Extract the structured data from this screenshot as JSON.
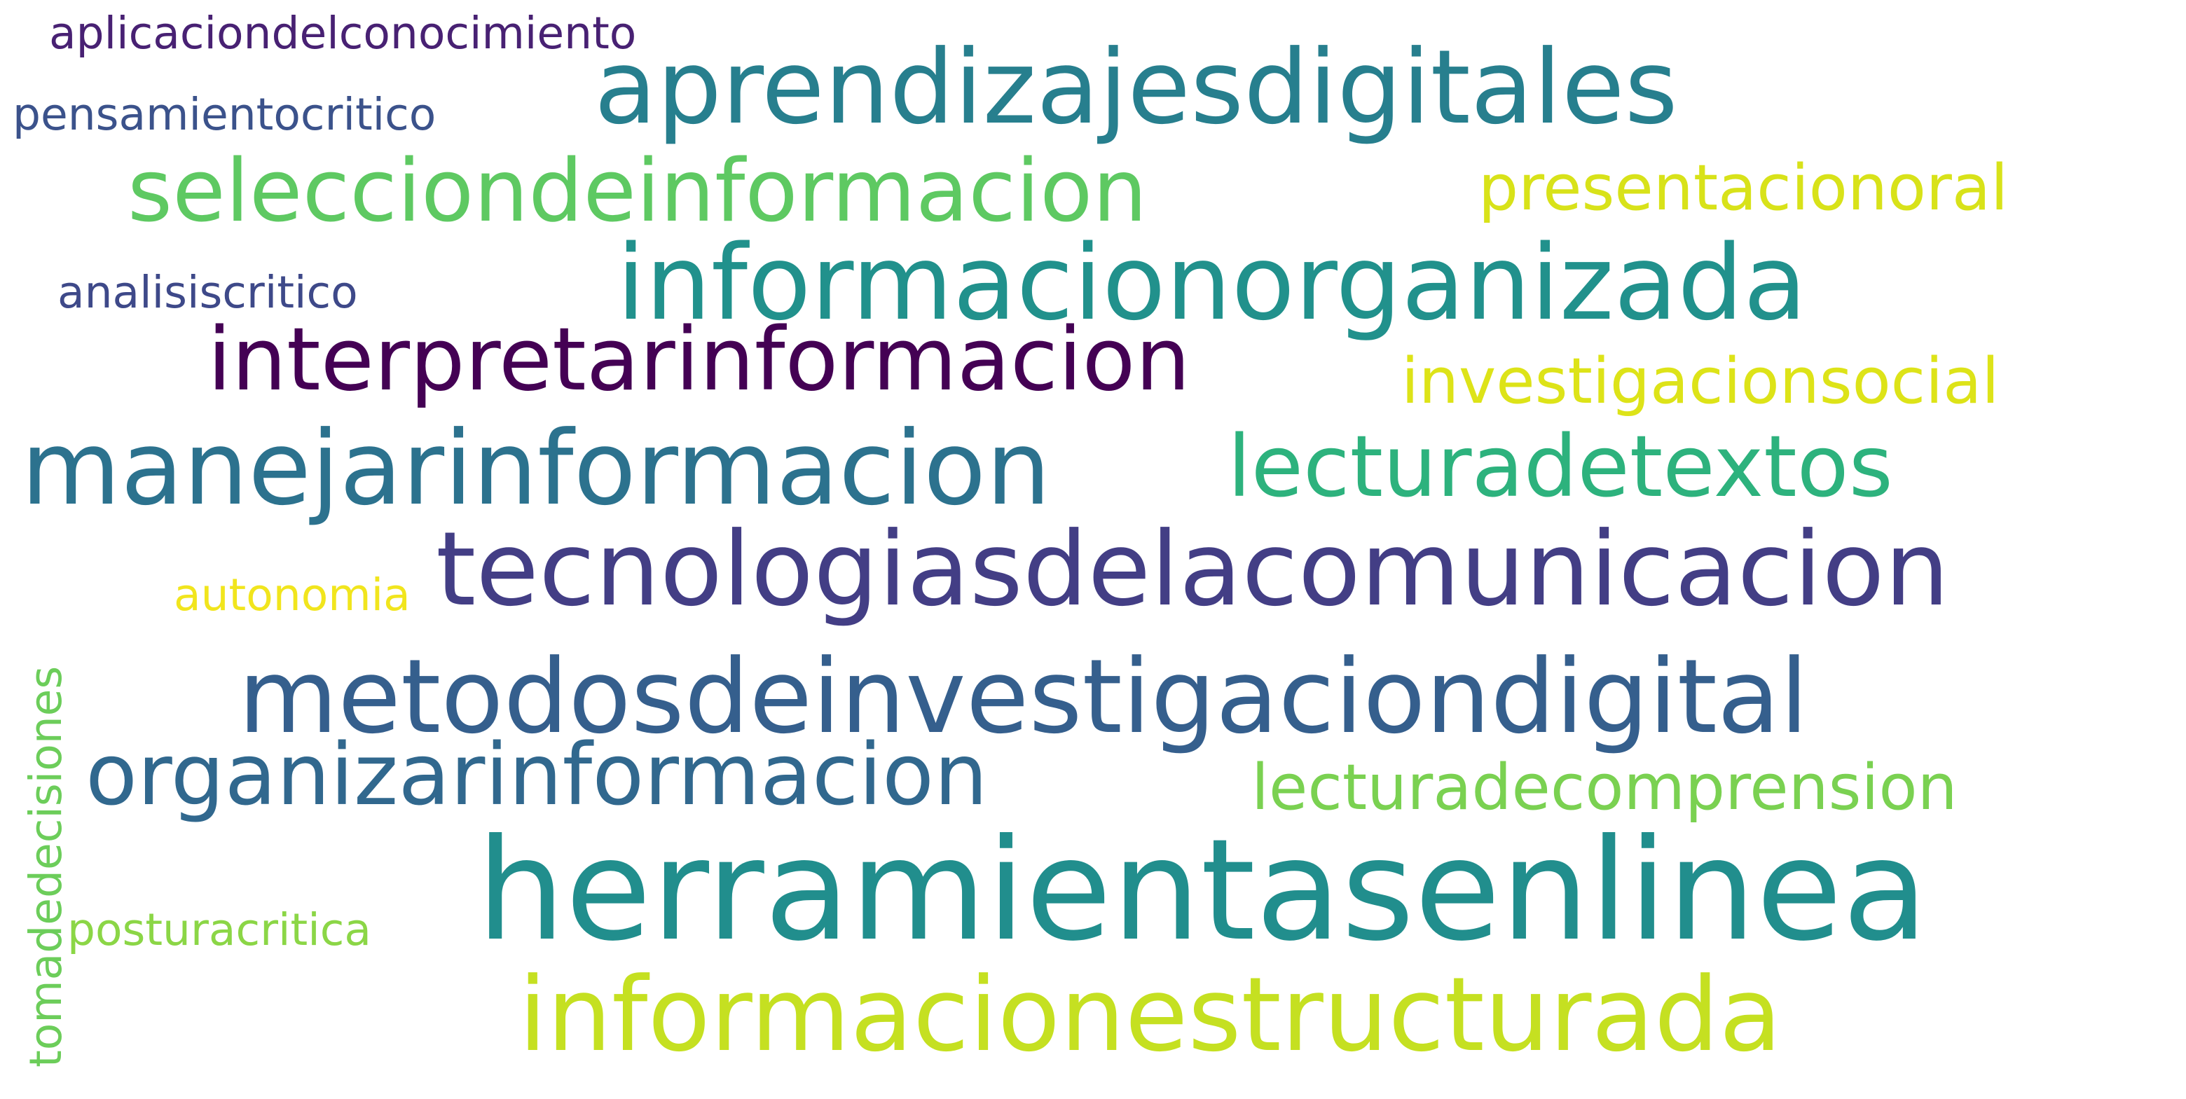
{
  "words": [
    {
      "id": "aprendizajesdigitales",
      "text": "aprendizajesdigitales",
      "color": "#277f8e"
    },
    {
      "id": "aplicaciondelconocimiento",
      "text": "aplicaciondelconocimiento",
      "color": "#482173"
    },
    {
      "id": "pensamientocritico",
      "text": "pensamientocritico",
      "color": "#3b528b"
    },
    {
      "id": "selecciondeinformacion",
      "text": "selecciondeinformacion",
      "color": "#5ec962"
    },
    {
      "id": "presentacionoral",
      "text": "presentacionoral",
      "color": "#d8e219"
    },
    {
      "id": "informacionorganizada",
      "text": "informacionorganizada",
      "color": "#21918c"
    },
    {
      "id": "analisiscritico",
      "text": "analisiscritico",
      "color": "#3e4989"
    },
    {
      "id": "interpretarinformacion",
      "text": "interpretarinformacion",
      "color": "#440154"
    },
    {
      "id": "investigacionsocial",
      "text": "investigacionsocial",
      "color": "#dde318"
    },
    {
      "id": "manejarinformacion",
      "text": "manejarinformacion",
      "color": "#2c728e"
    },
    {
      "id": "lecturadetextos",
      "text": "lecturadetextos",
      "color": "#2db27d"
    },
    {
      "id": "tecnologiasdelacomunicacion",
      "text": "tecnologiasdelacomunicacion",
      "color": "#433e85"
    },
    {
      "id": "autonomia",
      "text": "autonomia",
      "color": "#f1e51d"
    },
    {
      "id": "tomadedecisiones",
      "text": "tomadedecisiones",
      "color": "#6ccd5a"
    },
    {
      "id": "metodosdeinvestigaciondigital",
      "text": "metodosdeinvestigaciondigital",
      "color": "#355f8d"
    },
    {
      "id": "organizarinformacion",
      "text": "organizarinformacion",
      "color": "#31688e"
    },
    {
      "id": "lecturadecomprension",
      "text": "lecturadecomprension",
      "color": "#7ad151"
    },
    {
      "id": "herramientasenlinea",
      "text": "herramientasenlinea",
      "color": "#218e8d"
    },
    {
      "id": "posturacritica",
      "text": "posturacritica",
      "color": "#8bd646"
    },
    {
      "id": "informacionestructurada",
      "text": "informacionestructurada",
      "color": "#c5e021"
    }
  ]
}
